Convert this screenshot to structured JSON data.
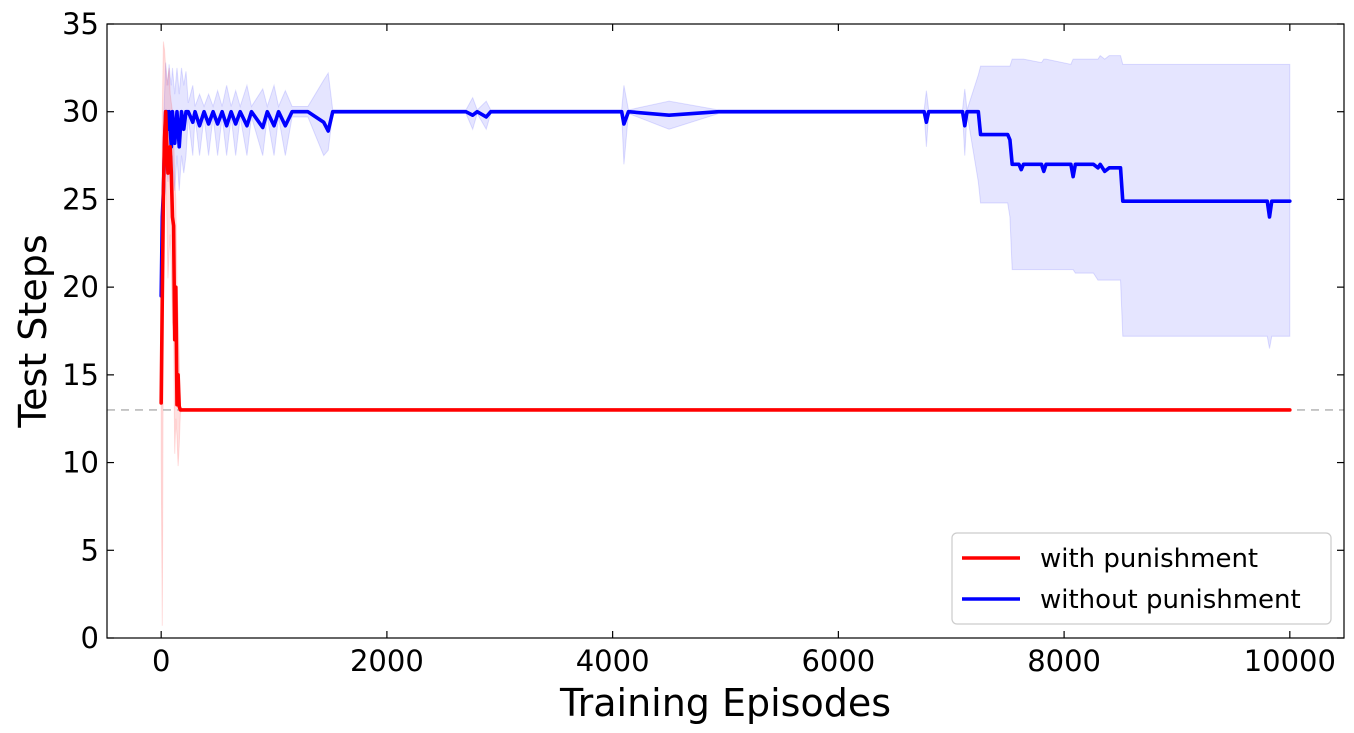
{
  "chart_data": {
    "type": "line",
    "title": "",
    "xlabel": "Training Episodes",
    "ylabel": "Test Steps",
    "xlim": [
      -480,
      10480
    ],
    "ylim": [
      0,
      35
    ],
    "xticks": [
      0,
      2000,
      4000,
      6000,
      8000,
      10000
    ],
    "yticks": [
      0,
      5,
      10,
      15,
      20,
      25,
      30,
      35
    ],
    "grid": false,
    "legend_position": "lower-right",
    "reference_line": {
      "y": 13,
      "style": "dashed",
      "color": "#bbbbbb"
    },
    "series": [
      {
        "name": "with punishment",
        "color": "#ff0000",
        "x": [
          0,
          10,
          20,
          30,
          40,
          50,
          60,
          70,
          80,
          90,
          100,
          110,
          120,
          130,
          140,
          150,
          160,
          170,
          180,
          200,
          300,
          1000,
          10000
        ],
        "y": [
          13.4,
          19.5,
          25.5,
          28.5,
          30,
          28,
          26.5,
          27.5,
          28,
          26.5,
          24,
          23.5,
          17,
          20,
          13.3,
          15,
          13.2,
          13,
          13,
          13,
          13,
          13,
          13
        ],
        "band_upper": [
          16,
          30,
          34,
          33.5,
          32.5,
          31.5,
          32,
          32.5,
          31,
          30.5,
          30,
          29,
          26,
          25,
          20,
          18.5,
          16,
          13.2,
          13,
          13,
          13,
          13,
          13
        ],
        "band_lower": [
          10.5,
          0.7,
          19,
          23,
          27.5,
          24,
          20.5,
          22,
          23,
          21,
          18,
          17.5,
          10.5,
          12.5,
          11.5,
          9.8,
          11,
          12.8,
          13,
          13,
          13,
          13,
          13
        ]
      },
      {
        "name": "without punishment",
        "color": "#0000ff",
        "x": [
          0,
          10,
          20,
          30,
          40,
          50,
          60,
          70,
          80,
          90,
          100,
          120,
          140,
          160,
          180,
          200,
          220,
          240,
          280,
          300,
          340,
          380,
          420,
          460,
          500,
          540,
          580,
          620,
          660,
          700,
          760,
          800,
          900,
          940,
          1000,
          1040,
          1100,
          1160,
          1200,
          1300,
          1440,
          1480,
          1520,
          2700,
          2760,
          2800,
          2880,
          2920,
          3300,
          4080,
          4100,
          4140,
          4500,
          4940,
          6760,
          6780,
          6800,
          7100,
          7120,
          7140,
          7240,
          7260,
          7500,
          7520,
          7540,
          7600,
          7620,
          7640,
          7800,
          7820,
          7840,
          8060,
          8080,
          8100,
          8260,
          8300,
          8320,
          8360,
          8400,
          8500,
          8520,
          9800,
          9820,
          9840,
          10000
        ],
        "y": [
          19.5,
          24,
          25.5,
          28,
          30,
          30,
          29,
          30,
          29,
          28,
          30,
          28.2,
          30,
          28,
          30,
          29,
          30,
          30,
          29.4,
          30,
          29.2,
          30,
          29.3,
          30,
          29.3,
          30,
          29.2,
          30,
          29.3,
          30,
          29.2,
          30,
          29.1,
          30,
          29.2,
          30,
          29.2,
          30,
          30,
          30,
          29.4,
          28.9,
          30,
          30,
          29.8,
          30,
          29.7,
          30,
          30,
          30,
          29.3,
          30,
          29.8,
          30,
          30,
          29.4,
          30,
          30,
          29.2,
          30,
          30,
          28.7,
          28.7,
          28.4,
          27,
          27,
          26.7,
          27,
          27,
          26.6,
          27,
          27,
          26.3,
          27,
          27,
          26.8,
          27,
          26.6,
          26.8,
          26.8,
          24.9,
          24.9,
          24,
          24.9,
          24.9
        ],
        "band_upper": [
          19.8,
          25,
          29,
          31,
          32.8,
          32,
          31.5,
          32.7,
          32,
          31.5,
          32.5,
          31,
          32.5,
          31,
          32.5,
          31.5,
          32.3,
          30.5,
          31.5,
          30.3,
          31,
          30.3,
          31,
          30.3,
          31.2,
          30.3,
          31.5,
          30.3,
          31.2,
          30.3,
          31.5,
          30.3,
          31.3,
          30.3,
          31.5,
          30.3,
          31.2,
          30.3,
          30.3,
          30.3,
          31.8,
          32.2,
          30.1,
          30.1,
          30.8,
          30.1,
          30.6,
          30.1,
          30.1,
          30.1,
          31.5,
          30.1,
          30.6,
          30.1,
          30.1,
          31.2,
          30.1,
          30.1,
          31.3,
          30.1,
          32.1,
          32.6,
          32.6,
          32.6,
          33,
          33,
          33,
          33,
          32.8,
          33,
          33,
          32.7,
          33,
          33,
          33,
          33,
          33.2,
          33,
          33.2,
          33.2,
          32.7,
          32.7,
          32.7,
          32.7,
          32.7
        ],
        "band_lower": [
          19.2,
          22,
          25,
          26.5,
          27.5,
          27,
          26,
          27.5,
          26.5,
          25.5,
          27.5,
          25.5,
          27.5,
          25.5,
          27.5,
          26.5,
          27.5,
          29.7,
          27.5,
          29.7,
          27.5,
          29.7,
          27.5,
          29.7,
          27.5,
          29.7,
          27.5,
          29.7,
          27.5,
          29.7,
          27.5,
          29.7,
          27.5,
          29.7,
          27.5,
          29.7,
          27.5,
          29.7,
          29.7,
          29.7,
          27.5,
          27.8,
          29.9,
          29.9,
          29,
          29.9,
          29,
          29.9,
          29.9,
          29.9,
          27,
          29.9,
          29,
          29.9,
          29.9,
          28,
          29.9,
          29.9,
          27.5,
          29.9,
          26,
          24.8,
          24.8,
          24,
          21,
          21,
          21,
          21,
          21,
          21,
          21,
          21,
          21,
          20.8,
          20.8,
          20.4,
          20.4,
          20.4,
          20.4,
          20.4,
          17.2,
          17.2,
          16.5,
          17.2,
          17.2
        ]
      }
    ]
  }
}
